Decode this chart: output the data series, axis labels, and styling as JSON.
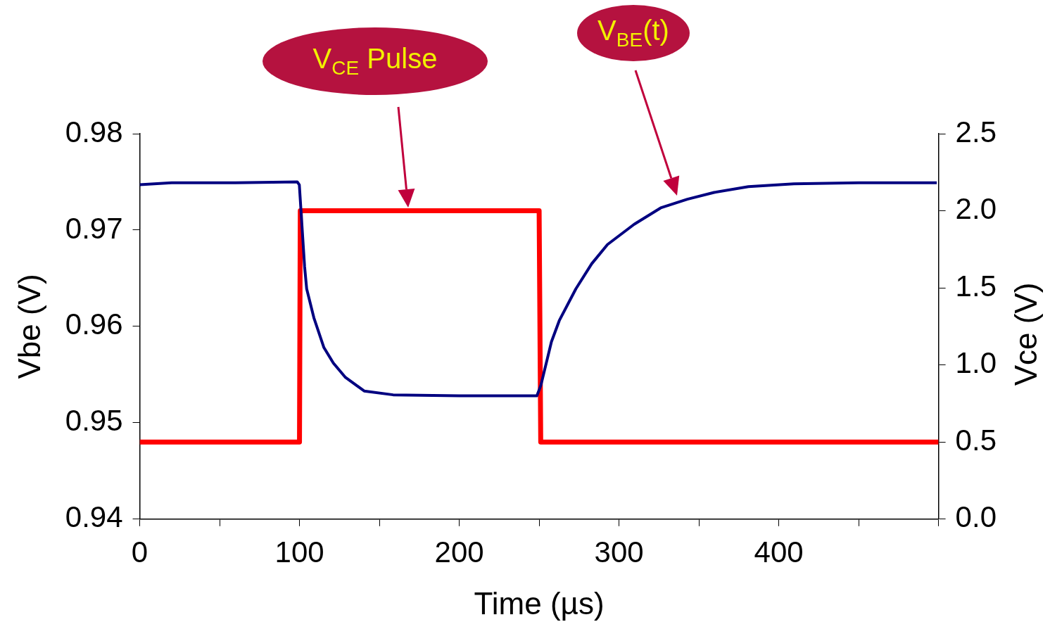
{
  "chart_data": {
    "type": "line",
    "xlabel": "Time (µs)",
    "ylabel": "Vbe (V)",
    "y2label": "Vce (V)",
    "xlim": [
      0,
      500
    ],
    "xticks": [
      0,
      {
        "value": 50,
        "label": null
      },
      100,
      {
        "value": 150,
        "label": null
      },
      200,
      {
        "value": 250,
        "label": null
      },
      300,
      {
        "value": 350,
        "label": null
      },
      400,
      {
        "value": 450,
        "label": null
      },
      {
        "value": 500,
        "label": null
      }
    ],
    "ylim": [
      0.94,
      0.98
    ],
    "yticks": [
      0.94,
      0.95,
      0.96,
      0.97,
      0.98
    ],
    "y2lim": [
      0,
      2.5
    ],
    "y2ticks": [
      {
        "value": 0,
        "label": "0.0"
      },
      {
        "value": 0.5,
        "label": "0.5"
      },
      {
        "value": 1,
        "label": "1.0"
      },
      {
        "value": 1.5,
        "label": "1.5"
      },
      {
        "value": 2,
        "label": "2.0"
      },
      {
        "value": 2.5,
        "label": "2.5"
      }
    ],
    "grid": false,
    "legend": false,
    "marker": "none",
    "line_style": "solid",
    "series": [
      {
        "color": "#000080",
        "x": [
          0,
          20,
          60,
          98.6,
          99.9,
          103.2,
          104.5,
          109,
          115.3,
          121.2,
          128.8,
          140.5,
          158.6,
          200,
          248.6,
          251.1,
          257.7,
          262.6,
          273,
          282.9,
          292.8,
          309.5,
          326.1,
          342.8,
          359.5,
          381,
          409.5,
          450,
          498.9
        ],
        "values": [
          0.9747,
          0.9749,
          0.9749,
          0.975,
          0.9747,
          0.9662,
          0.9639,
          0.9609,
          0.9578,
          0.9562,
          0.9547,
          0.9533,
          0.9529,
          0.9528,
          0.9528,
          0.9539,
          0.9584,
          0.9606,
          0.9639,
          0.9665,
          0.9685,
          0.9706,
          0.9723,
          0.9732,
          0.9739,
          0.9745,
          0.9748,
          0.9749,
          0.9749
        ]
      },
      {
        "color": "#ff0000",
        "axis": "y2",
        "x": [
          0,
          100,
          100.5,
          250,
          251,
          500
        ],
        "values": [
          0.5,
          0.5,
          2,
          2,
          0.5,
          0.5
        ]
      }
    ],
    "annotations": [
      "V$_{CE}$ Pulse",
      "V$_{BE}$(t)"
    ]
  }
}
